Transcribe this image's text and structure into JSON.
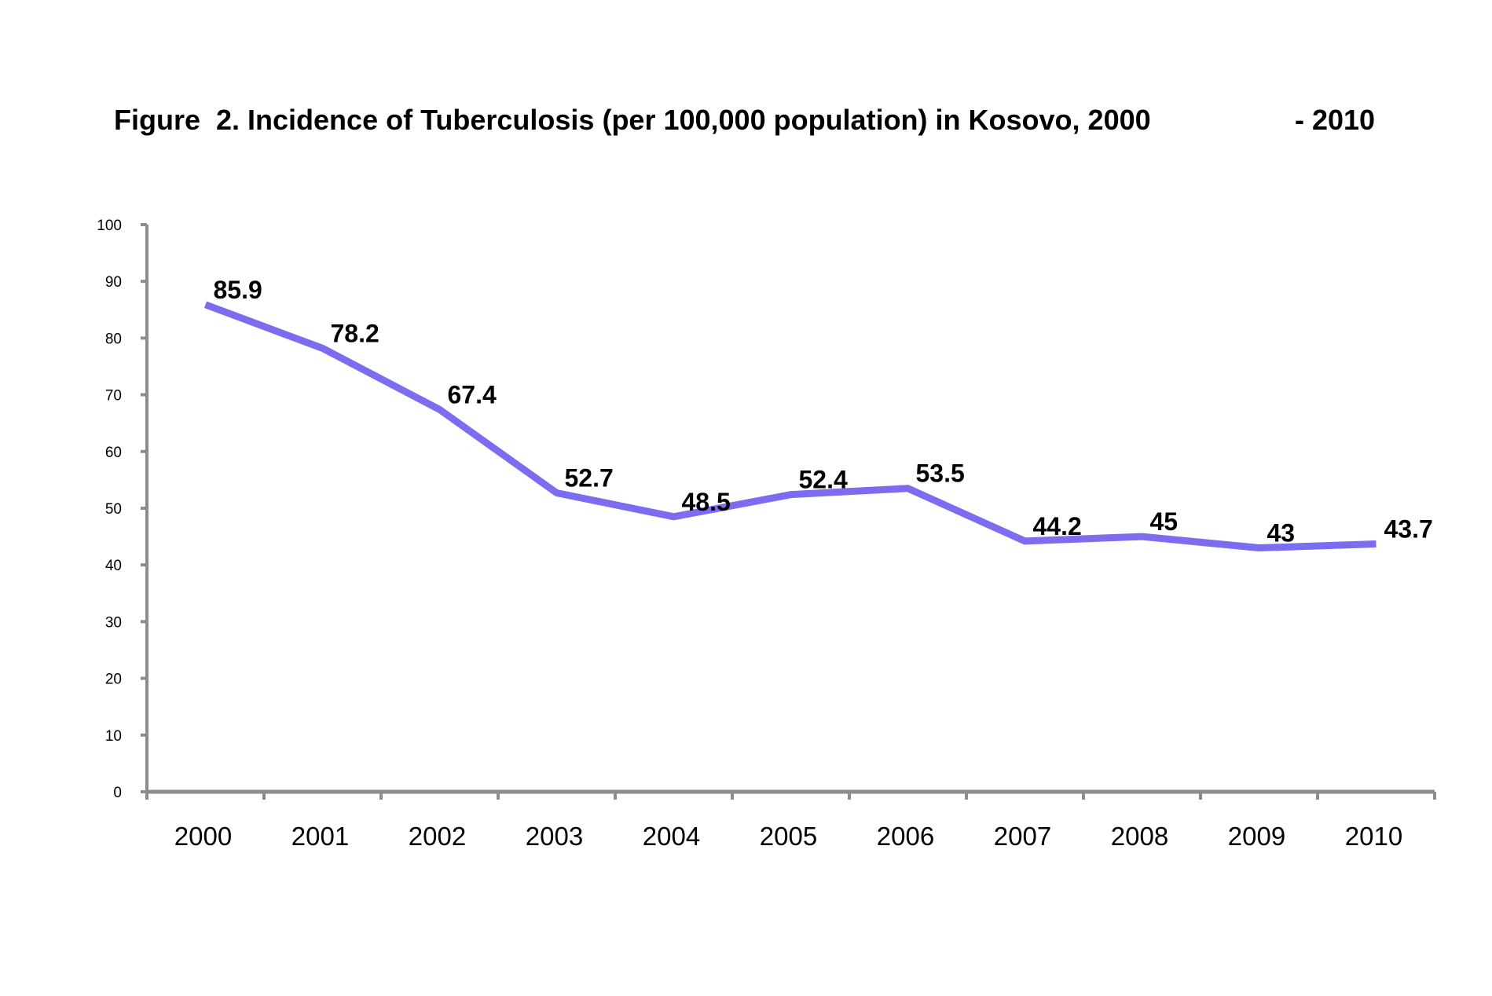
{
  "figure": {
    "title_part1": "Figure",
    "title_part2": "2.  Incidence of Tuberculosis (per 100,000 population) in Kosovo, 2000",
    "title_part3": "- 2010"
  },
  "chart_data": {
    "type": "line",
    "title": "Figure 2. Incidence of Tuberculosis (per 100,000 population) in Kosovo, 2000 - 2010",
    "xlabel": "",
    "ylabel": "",
    "categories": [
      "2000",
      "2001",
      "2002",
      "2003",
      "2004",
      "2005",
      "2006",
      "2007",
      "2008",
      "2009",
      "2010"
    ],
    "series": [
      {
        "values": [
          85.9,
          78.2,
          67.4,
          52.7,
          48.5,
          52.4,
          53.5,
          44.2,
          45,
          43,
          43.7
        ],
        "labels": [
          "85.9",
          "78.2",
          "67.4",
          "52.7",
          "48.5",
          "52.4",
          "53.5",
          "44.2",
          "45",
          "43",
          "43.7"
        ],
        "color": "#7b6cf0"
      }
    ],
    "ylim": [
      0,
      100
    ],
    "yticks": [
      "0",
      "10",
      "20",
      "30",
      "40",
      "50",
      "60",
      "70",
      "80",
      "90",
      "100"
    ],
    "grid": false,
    "legend": "none",
    "axis_color": "#8c8c8c"
  }
}
